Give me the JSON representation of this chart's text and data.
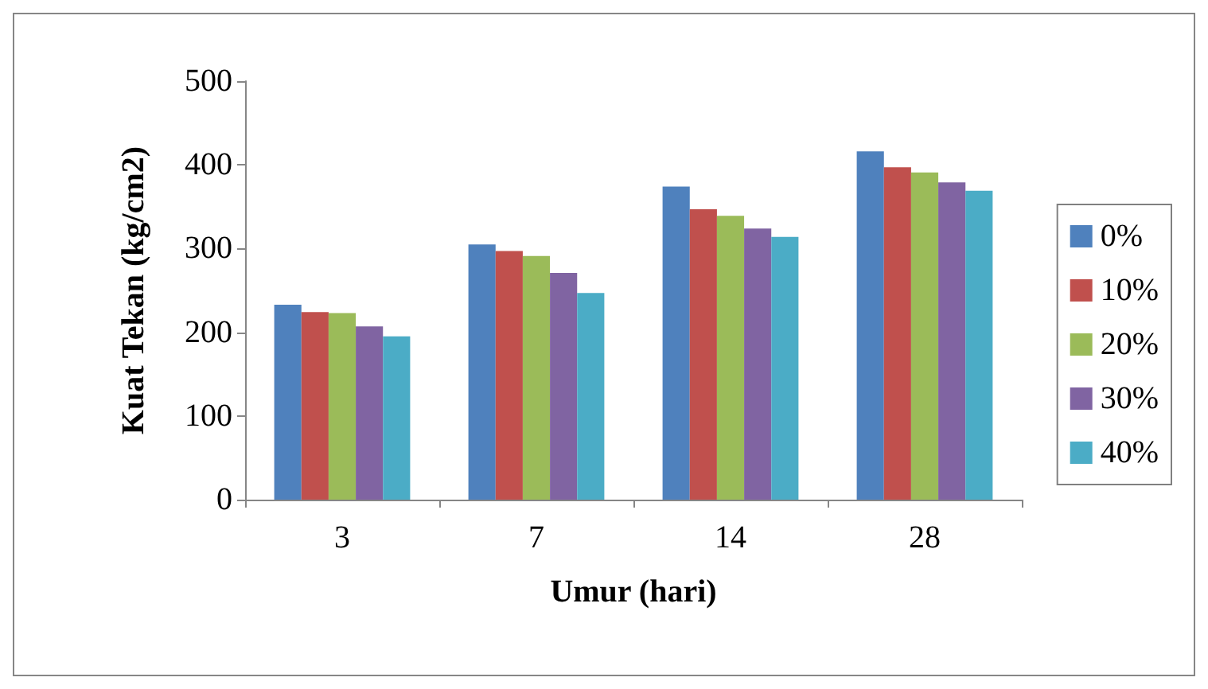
{
  "chart_data": {
    "type": "bar",
    "xlabel": "Umur (hari)",
    "ylabel": "Kuat Tekan (kg/cm2)",
    "categories": [
      "3",
      "7",
      "14",
      "28"
    ],
    "series": [
      {
        "name": "0%",
        "color": "#4f81bd",
        "values": [
          233,
          305,
          374,
          416
        ]
      },
      {
        "name": "10%",
        "color": "#c0504d",
        "values": [
          224,
          297,
          347,
          397
        ]
      },
      {
        "name": "20%",
        "color": "#9bbb59",
        "values": [
          223,
          291,
          339,
          391
        ]
      },
      {
        "name": "30%",
        "color": "#8064a2",
        "values": [
          207,
          271,
          324,
          379
        ]
      },
      {
        "name": "40%",
        "color": "#4bacc6",
        "values": [
          195,
          247,
          314,
          369
        ]
      }
    ],
    "ylim": [
      0,
      500
    ],
    "yticks": [
      0,
      100,
      200,
      300,
      400,
      500
    ],
    "grid": false,
    "legend": "right"
  }
}
